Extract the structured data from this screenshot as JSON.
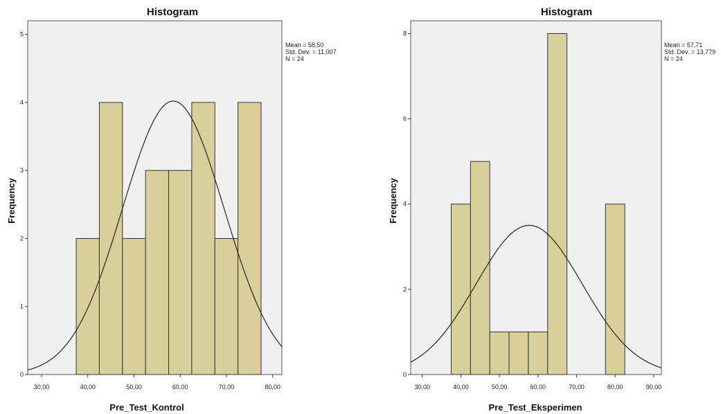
{
  "chart_data": [
    {
      "type": "bar",
      "title": "Histogram",
      "xlabel": "Pre_Test_Kontrol",
      "ylabel": "Frequency",
      "xlim": [
        27,
        82
      ],
      "ylim": [
        0,
        5.2
      ],
      "xticks": [
        30,
        40,
        50,
        60,
        70,
        80
      ],
      "xtick_labels": [
        "30,00",
        "40,00",
        "50,00",
        "60,00",
        "70,00",
        "80,00"
      ],
      "yticks": [
        0,
        1,
        2,
        3,
        4,
        5
      ],
      "ytick_labels": [
        "0",
        "1",
        "2",
        "3",
        "4",
        "5"
      ],
      "bins": [
        {
          "x0": 37.5,
          "x1": 42.5,
          "count": 2
        },
        {
          "x0": 42.5,
          "x1": 47.5,
          "count": 4
        },
        {
          "x0": 47.5,
          "x1": 52.5,
          "count": 2
        },
        {
          "x0": 52.5,
          "x1": 57.5,
          "count": 3
        },
        {
          "x0": 57.5,
          "x1": 62.5,
          "count": 3
        },
        {
          "x0": 62.5,
          "x1": 67.5,
          "count": 4
        },
        {
          "x0": 67.5,
          "x1": 72.5,
          "count": 2
        },
        {
          "x0": 72.5,
          "x1": 77.5,
          "count": 4
        }
      ],
      "normal_curve": {
        "mean": 58.5,
        "sd": 11.0,
        "peak": 4.02
      },
      "stats": [
        "Mean = 58,50",
        "Std. Dev. = 11,007",
        "N = 24"
      ],
      "grid": false,
      "bar_color": "#d9cf9a",
      "plot_bg": "#f0f0f0"
    },
    {
      "type": "bar",
      "title": "Histogram",
      "xlabel": "Pre_Test_Eksperimen",
      "ylabel": "Frequency",
      "xlim": [
        27,
        92
      ],
      "ylim": [
        0,
        8.3
      ],
      "xticks": [
        30,
        40,
        50,
        60,
        70,
        80,
        90
      ],
      "xtick_labels": [
        "30,00",
        "40,00",
        "50,00",
        "60,00",
        "70,00",
        "80,00",
        "90,00"
      ],
      "yticks": [
        0,
        2,
        4,
        6,
        8
      ],
      "ytick_labels": [
        "0",
        "2",
        "4",
        "6",
        "8"
      ],
      "bins": [
        {
          "x0": 37.5,
          "x1": 42.5,
          "count": 4
        },
        {
          "x0": 42.5,
          "x1": 47.5,
          "count": 5
        },
        {
          "x0": 47.5,
          "x1": 52.5,
          "count": 1
        },
        {
          "x0": 52.5,
          "x1": 57.5,
          "count": 1
        },
        {
          "x0": 57.5,
          "x1": 62.5,
          "count": 1
        },
        {
          "x0": 62.5,
          "x1": 67.5,
          "count": 8
        },
        {
          "x0": 77.5,
          "x1": 82.5,
          "count": 4
        }
      ],
      "normal_curve": {
        "mean": 57.71,
        "sd": 13.779,
        "peak": 3.5
      },
      "stats": [
        "Mean = 57,71",
        "Std. Dev. = 13,779",
        "N = 24"
      ],
      "grid": false,
      "bar_color": "#d9cf9a",
      "plot_bg": "#f0f0f0"
    }
  ]
}
